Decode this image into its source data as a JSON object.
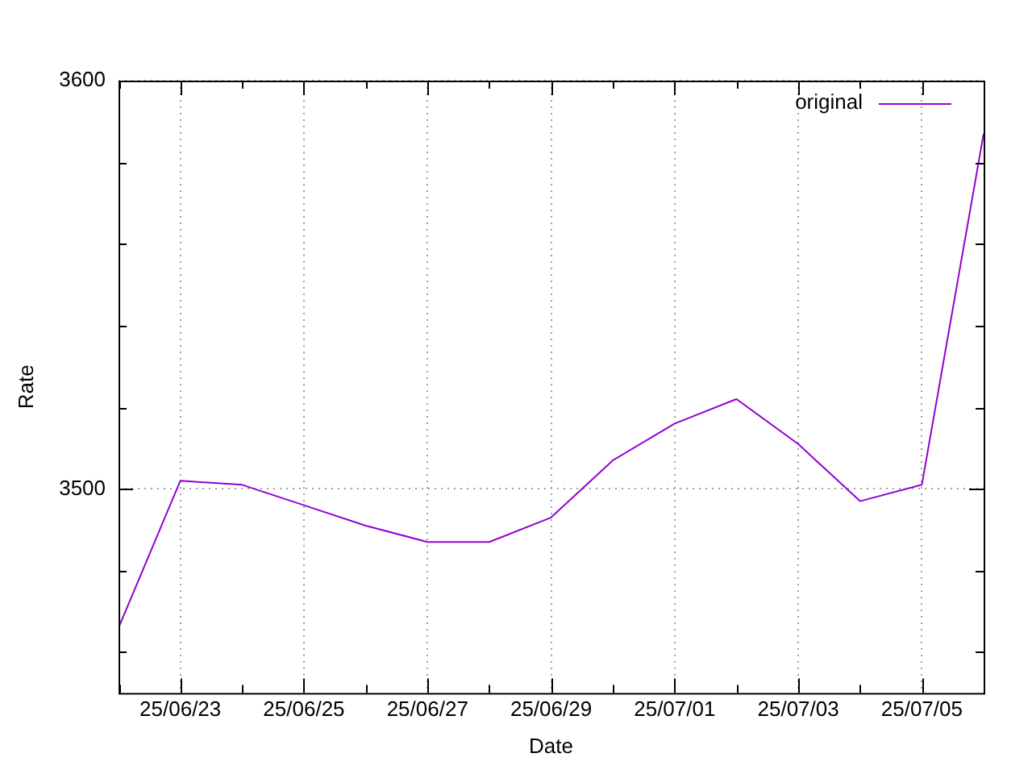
{
  "chart_data": {
    "type": "line",
    "xlabel": "Date",
    "ylabel": "Rate",
    "x": [
      "--06-22",
      "--06-23",
      "--06-24",
      "--06-25",
      "--06-26",
      "--06-27",
      "--06-28",
      "--06-29",
      "--06-30",
      "--07-01",
      "--07-02",
      "--07-03",
      "--07-04",
      "--07-05",
      "--07-06"
    ],
    "series": [
      {
        "name": "original",
        "color": "#9400d3",
        "values": [
          3466,
          3502,
          3501,
          3496,
          3491,
          3487,
          3487,
          3493,
          3507,
          3516,
          3522,
          3511,
          3497,
          3501,
          3587
        ]
      }
    ],
    "xlim": [
      "--06-22",
      "--07-06"
    ],
    "xticks": [
      {
        "value": "--06-23",
        "label": "25/06/23"
      },
      {
        "value": "--06-25",
        "label": "25/06/25"
      },
      {
        "value": "--06-27",
        "label": "25/06/27"
      },
      {
        "value": "--06-29",
        "label": "25/06/29"
      },
      {
        "value": "--07-01",
        "label": "25/07/01"
      },
      {
        "value": "--07-03",
        "label": "25/07/03"
      },
      {
        "value": "--07-05",
        "label": "25/07/05"
      }
    ],
    "ylim": [
      3450,
      3600
    ],
    "yticks": [
      3500,
      3600
    ],
    "grid": true,
    "legend": "top right",
    "marker": "none",
    "line_style": "solid"
  }
}
